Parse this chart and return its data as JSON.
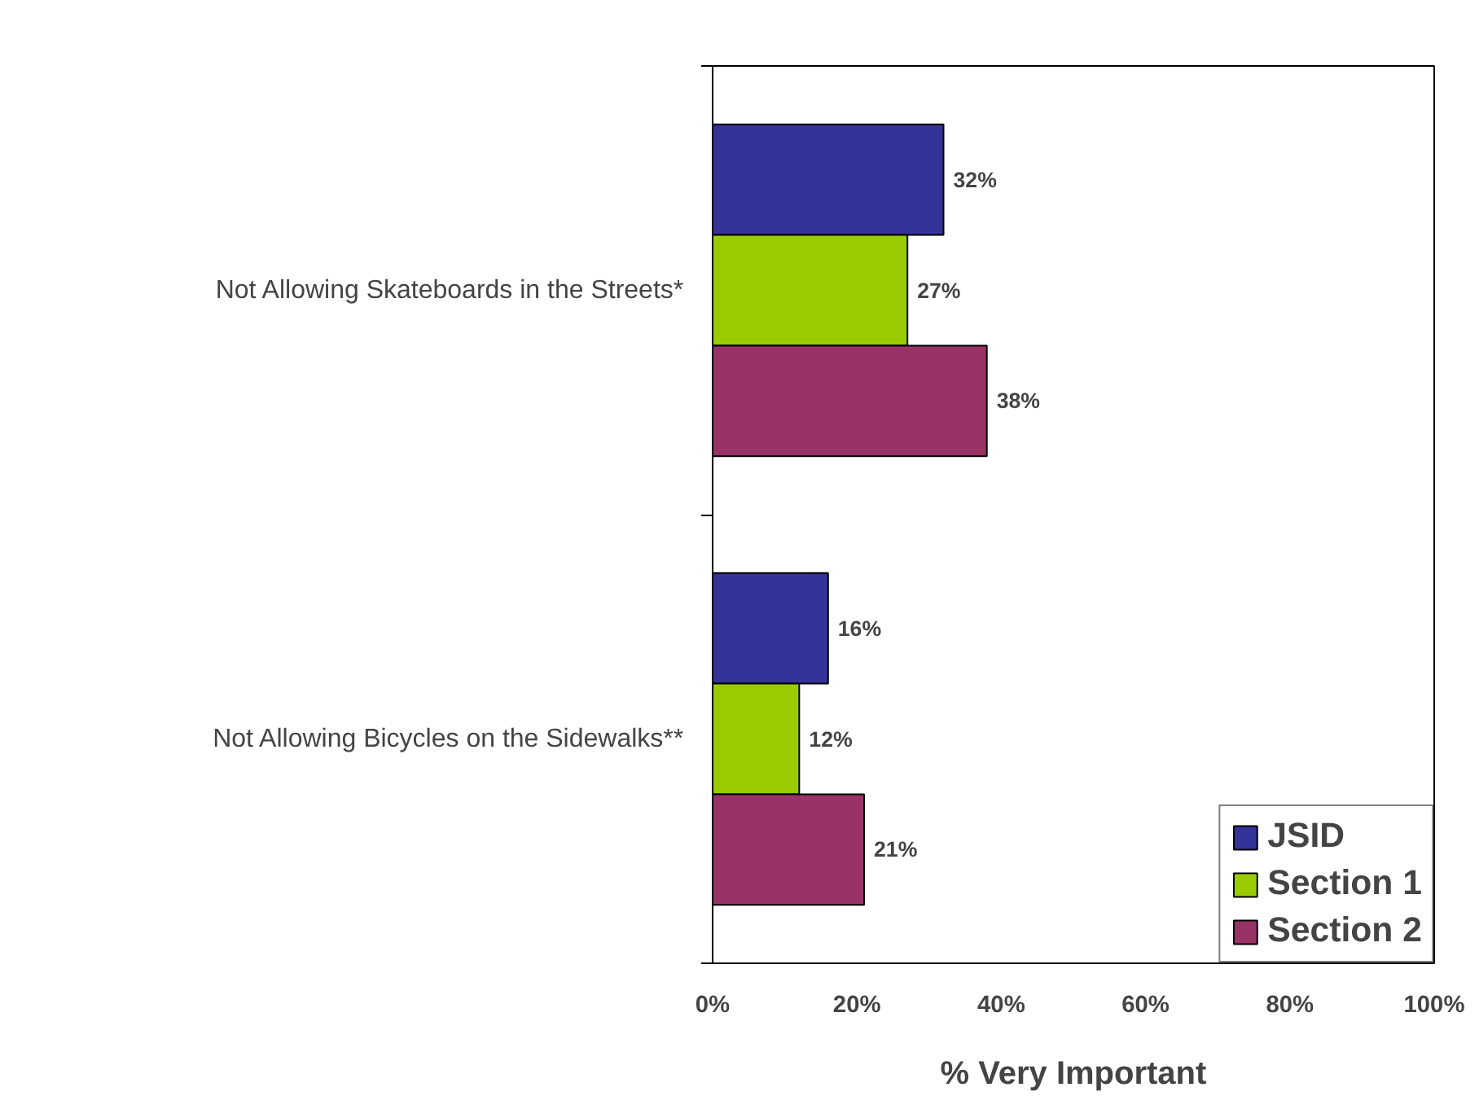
{
  "chart_data": {
    "type": "bar",
    "orientation": "horizontal",
    "xlabel": "% Very Important",
    "categories": [
      "Not Allowing Skateboards in the Streets*",
      "Not Allowing Bicycles on the Sidewalks**"
    ],
    "series": [
      {
        "name": "JSID",
        "color": "#333399",
        "values": [
          32,
          16
        ],
        "value_labels": [
          "32%",
          "16%"
        ]
      },
      {
        "name": "Section 1",
        "color": "#99cc00",
        "values": [
          27,
          12
        ],
        "value_labels": [
          "27%",
          "12%"
        ]
      },
      {
        "name": "Section 2",
        "color": "#993366",
        "values": [
          38,
          21
        ],
        "value_labels": [
          "38%",
          "21%"
        ]
      }
    ],
    "xlim": [
      0,
      100
    ],
    "xticks": [
      {
        "value": 0,
        "label": "0%"
      },
      {
        "value": 20,
        "label": "20%"
      },
      {
        "value": 40,
        "label": "40%"
      },
      {
        "value": 60,
        "label": "60%"
      },
      {
        "value": 80,
        "label": "80%"
      },
      {
        "value": 100,
        "label": "100%"
      }
    ],
    "grid": false,
    "legend": "bottom right"
  }
}
